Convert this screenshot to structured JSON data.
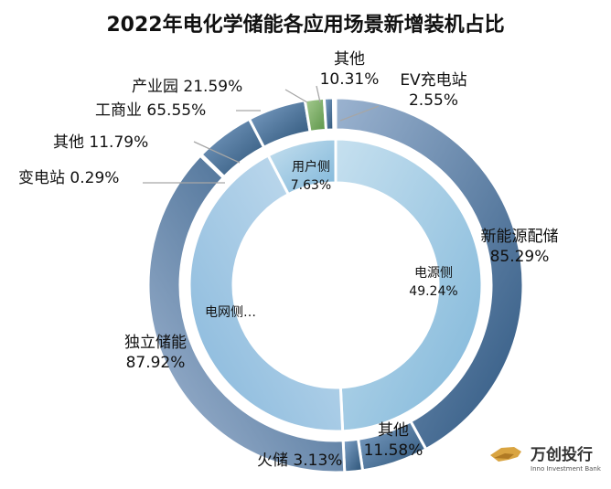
{
  "chart_data": {
    "type": "donut",
    "title": "2022年电化学储能各应用场景新增装机占比",
    "inner_ring": [
      {
        "label": "电源侧",
        "value": 49.24,
        "value_text": "49.24%"
      },
      {
        "label": "电网侧…",
        "value": 43.13,
        "value_text": ""
      },
      {
        "label": "用户侧",
        "value": 7.63,
        "value_text": "7.63%"
      }
    ],
    "outer_ring": [
      {
        "group": "电源侧",
        "label": "新能源配储",
        "value": 85.29,
        "value_text": "85.29%"
      },
      {
        "group": "电源侧",
        "label": "其他",
        "value": 11.58,
        "value_text": "11.58%"
      },
      {
        "group": "电源侧",
        "label": "火储",
        "value": 3.13,
        "value_text": "3.13%"
      },
      {
        "group": "电网侧",
        "label": "独立储能",
        "value": 87.92,
        "value_text": "87.92%"
      },
      {
        "group": "电网侧",
        "label": "变电站",
        "value": 0.29,
        "value_text": "0.29%"
      },
      {
        "group": "电网侧",
        "label": "其他",
        "value": 11.79,
        "value_text": "11.79%"
      },
      {
        "group": "用户侧",
        "label": "工商业",
        "value": 65.55,
        "value_text": "65.55%"
      },
      {
        "group": "用户侧",
        "label": "产业园",
        "value": 21.59,
        "value_text": "21.59%"
      },
      {
        "group": "用户侧",
        "label": "其他",
        "value": 10.31,
        "value_text": "10.31%"
      },
      {
        "group": "用户侧",
        "label": "EV充电站",
        "value": 2.55,
        "value_text": "2.55%"
      }
    ]
  },
  "logo": {
    "name": "万创投行",
    "subtitle": "Inno Investment Bank"
  }
}
